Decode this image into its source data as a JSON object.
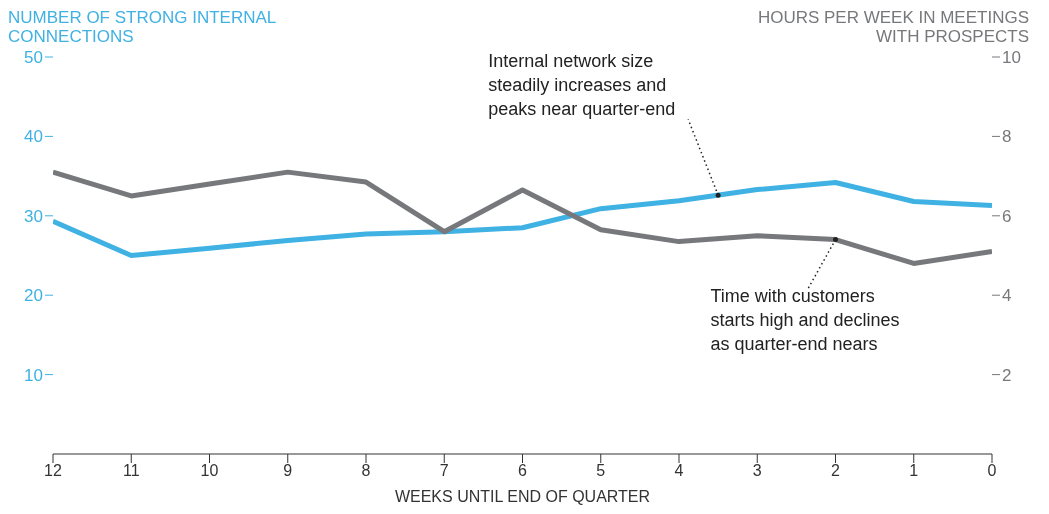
{
  "chart_data": {
    "type": "line",
    "ylabel": "NUMBER OF STRONG INTERNAL\nCONNECTIONS",
    "y2label": "HOURS PER WEEK IN MEETINGS\nWITH PROSPECTS",
    "xlabel": "WEEKS UNTIL END OF QUARTER",
    "x": [
      12,
      11,
      10,
      9,
      8,
      7,
      6,
      5,
      4,
      3,
      2,
      1,
      0
    ],
    "xlim": [
      12,
      0
    ],
    "xticks": [
      12,
      11,
      10,
      9,
      8,
      7,
      6,
      5,
      4,
      3,
      2,
      1,
      0
    ],
    "ylim": [
      0,
      50
    ],
    "yticks": [
      10,
      20,
      30,
      40,
      50
    ],
    "y2lim": [
      0,
      10
    ],
    "y2ticks": [
      2,
      4,
      6,
      8,
      10
    ],
    "series": [
      {
        "color": "#3fb1e3",
        "values": [
          29.3,
          25.0,
          25.9,
          26.9,
          27.7,
          28.0,
          28.5,
          30.9,
          31.9,
          33.3,
          34.2,
          31.8,
          31.3
        ]
      },
      {
        "color": "#77787b",
        "axis": "y2",
        "values": [
          7.1,
          6.5,
          6.8,
          7.1,
          6.85,
          5.6,
          6.65,
          5.65,
          5.35,
          5.5,
          5.4,
          4.8,
          5.1
        ]
      }
    ],
    "annotations": [
      {
        "text": "Internal network size\nsteadily increases and\npeaks near quarter-end",
        "x": 3.5,
        "y": 32.6
      },
      {
        "text": "Time with customers\nstarts high and declines\nas quarter-end nears",
        "x": 2,
        "y": 27
      }
    ],
    "grid": false,
    "legend": false,
    "marker": "none",
    "line_style": "solid"
  }
}
